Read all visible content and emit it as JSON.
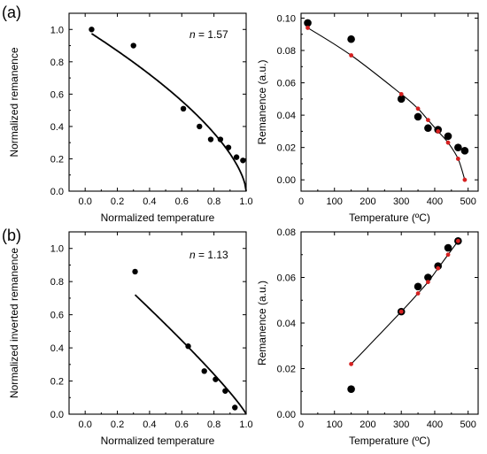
{
  "figure": {
    "panel_labels": [
      "(a)",
      "(b)"
    ]
  },
  "colors": {
    "black_series": "#000000",
    "red_series": "#d62020",
    "axis": "#000000"
  },
  "chart_data": [
    {
      "id": "a-left",
      "type": "scatter",
      "xlabel": "Normalized temperature",
      "ylabel": "Normalized remanence",
      "xlim": [
        -0.1,
        1.0
      ],
      "ylim": [
        0.0,
        1.1
      ],
      "xticks": [
        "0.0",
        "0.2",
        "0.4",
        "0.6",
        "0.8",
        "1.0"
      ],
      "xtick_values": [
        0.0,
        0.2,
        0.4,
        0.6,
        0.8,
        1.0
      ],
      "yticks": [
        "0.0",
        "0.2",
        "0.4",
        "0.6",
        "0.8",
        "1.0"
      ],
      "ytick_values": [
        0.0,
        0.2,
        0.4,
        0.6,
        0.8,
        1.0
      ],
      "annotation": {
        "label": "n",
        "value": "= 1.57"
      },
      "points": {
        "x": [
          0.04,
          0.3,
          0.61,
          0.71,
          0.78,
          0.84,
          0.89,
          0.94,
          0.98
        ],
        "y": [
          1.0,
          0.9,
          0.51,
          0.4,
          0.32,
          0.32,
          0.27,
          0.21,
          0.19
        ]
      },
      "fit_curve": {
        "exponent": 1.57,
        "x_start": 0.04,
        "x_end": 1.0,
        "equation": "y=(1-x)^(1/n)"
      }
    },
    {
      "id": "a-right",
      "type": "scatter",
      "xlabel": "Temperature (ºC)",
      "ylabel": "Remanence (a.u.)",
      "xlim": [
        0,
        530
      ],
      "ylim": [
        -0.007,
        0.103
      ],
      "xticks": [
        "0",
        "100",
        "200",
        "300",
        "400",
        "500"
      ],
      "xtick_values": [
        0,
        100,
        200,
        300,
        400,
        500
      ],
      "yticks": [
        "0.00",
        "0.02",
        "0.04",
        "0.06",
        "0.08",
        "0.10"
      ],
      "ytick_values": [
        0.0,
        0.02,
        0.04,
        0.06,
        0.08,
        0.1
      ],
      "series": [
        {
          "style": "black-dots",
          "x": [
            20,
            150,
            300,
            350,
            380,
            410,
            440,
            470,
            490
          ],
          "y": [
            0.097,
            0.087,
            0.05,
            0.039,
            0.032,
            0.031,
            0.027,
            0.02,
            0.018
          ]
        },
        {
          "style": "red-line-dots",
          "x": [
            20,
            150,
            300,
            350,
            380,
            410,
            440,
            470,
            490
          ],
          "y": [
            0.094,
            0.077,
            0.053,
            0.044,
            0.037,
            0.03,
            0.023,
            0.013,
            0.0
          ]
        }
      ]
    },
    {
      "id": "b-left",
      "type": "scatter",
      "xlabel": "Normalized temperature",
      "ylabel": "Normalized inverted remanence",
      "xlim": [
        -0.1,
        1.0
      ],
      "ylim": [
        0.0,
        1.1
      ],
      "xticks": [
        "0.0",
        "0.2",
        "0.4",
        "0.6",
        "0.8",
        "1.0"
      ],
      "xtick_values": [
        0.0,
        0.2,
        0.4,
        0.6,
        0.8,
        1.0
      ],
      "yticks": [
        "0.0",
        "0.2",
        "0.4",
        "0.6",
        "0.8",
        "1.0"
      ],
      "ytick_values": [
        0.0,
        0.2,
        0.4,
        0.6,
        0.8,
        1.0
      ],
      "annotation": {
        "label": "n",
        "value": "= 1.13"
      },
      "points": {
        "x": [
          0.31,
          0.64,
          0.74,
          0.81,
          0.87,
          0.93
        ],
        "y": [
          0.86,
          0.41,
          0.26,
          0.21,
          0.14,
          0.04
        ]
      },
      "fit_curve": {
        "exponent": 1.13,
        "x_start": 0.31,
        "x_end": 1.0,
        "equation": "y=(1-x)^(1/n)"
      }
    },
    {
      "id": "b-right",
      "type": "scatter",
      "xlabel": "Temperature (ºC)",
      "ylabel": "Remanence (a.u.)",
      "xlim": [
        0,
        530
      ],
      "ylim": [
        0.0,
        0.08
      ],
      "xticks": [
        "0",
        "100",
        "200",
        "300",
        "400",
        "500"
      ],
      "xtick_values": [
        0,
        100,
        200,
        300,
        400,
        500
      ],
      "yticks": [
        "0.00",
        "0.02",
        "0.04",
        "0.06",
        "0.08"
      ],
      "ytick_values": [
        0.0,
        0.02,
        0.04,
        0.06,
        0.08
      ],
      "series": [
        {
          "style": "black-dots",
          "x": [
            150,
            300,
            350,
            380,
            410,
            440,
            470
          ],
          "y": [
            0.011,
            0.045,
            0.056,
            0.06,
            0.065,
            0.073,
            0.076
          ]
        },
        {
          "style": "red-line-dots",
          "x": [
            150,
            300,
            350,
            380,
            410,
            440,
            470
          ],
          "y": [
            0.022,
            0.045,
            0.053,
            0.058,
            0.064,
            0.07,
            0.076
          ]
        }
      ]
    }
  ]
}
